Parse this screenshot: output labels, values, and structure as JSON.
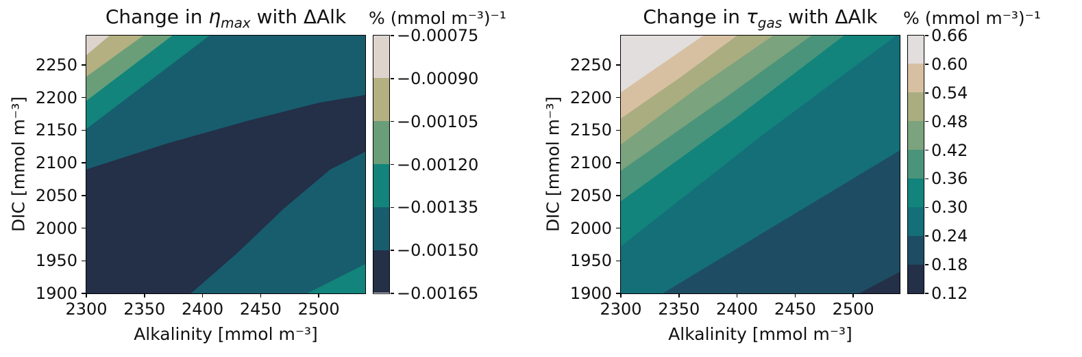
{
  "chart_data": [
    {
      "type": "contourf",
      "title": {
        "prefix": "Change in ",
        "symbol": "η",
        "subscript": "max",
        "suffix": " with ΔAlk"
      },
      "xlabel": "Alkalinity [mmol m⁻³]",
      "ylabel": "DIC [mmol m⁻³]",
      "xlim": [
        2300,
        2540
      ],
      "ylim": [
        1900,
        2295
      ],
      "xticks": [
        2300,
        2350,
        2400,
        2450,
        2500
      ],
      "yticks": [
        1900,
        1950,
        2000,
        2050,
        2100,
        2150,
        2200,
        2250
      ],
      "grid": false,
      "levels": [
        -0.00165,
        -0.0015,
        -0.00135,
        -0.0012,
        -0.00105,
        -0.0009,
        -0.00075
      ],
      "colorbar": {
        "title": "% (mmol m⁻³)⁻¹",
        "position": "right",
        "tick_labels": [
          "−0.00075",
          "−0.00090",
          "−0.00105",
          "−0.00120",
          "−0.00135",
          "−0.00150",
          "−0.00165"
        ],
        "colors": [
          "#ded4ce",
          "#b4b081",
          "#699e78",
          "#12847b",
          "#175d6e",
          "#242f48"
        ]
      },
      "base_color": "#175d6e",
      "base_band_range": [
        -0.0015,
        -0.00135
      ],
      "bands": [
        {
          "range": [
            -0.00135,
            -0.0012
          ],
          "color": "#12847b",
          "points": [
            [
              2300,
              2152
            ],
            [
              2406,
              2295
            ],
            [
              2300,
              2295
            ]
          ]
        },
        {
          "range": [
            -0.0012,
            -0.00105
          ],
          "color": "#699e78",
          "points": [
            [
              2300,
              2195
            ],
            [
              2374,
              2295
            ],
            [
              2300,
              2295
            ]
          ]
        },
        {
          "range": [
            -0.00105,
            -0.0009
          ],
          "color": "#b4b081",
          "points": [
            [
              2300,
              2232
            ],
            [
              2349,
              2295
            ],
            [
              2300,
              2295
            ]
          ]
        },
        {
          "range": [
            -0.0009,
            -0.00075
          ],
          "color": "#ded4ce",
          "points": [
            [
              2300,
              2265
            ],
            [
              2320,
              2295
            ],
            [
              2300,
              2295
            ]
          ]
        },
        {
          "range": [
            -0.00165,
            -0.0015
          ],
          "color": "#242f48",
          "points": [
            [
              2300,
              1900
            ],
            [
              2300,
              2090
            ],
            [
              2370,
              2130
            ],
            [
              2440,
              2165
            ],
            [
              2500,
              2192
            ],
            [
              2540,
              2204
            ],
            [
              2540,
              2117
            ],
            [
              2510,
              2090
            ],
            [
              2470,
              2030
            ],
            [
              2430,
              1962
            ],
            [
              2390,
              1900
            ]
          ]
        },
        {
          "range": [
            -0.00135,
            -0.0012
          ],
          "color": "#12847b",
          "points": [
            [
              2490,
              1900
            ],
            [
              2540,
              1945
            ],
            [
              2540,
              1900
            ]
          ]
        }
      ]
    },
    {
      "type": "contourf",
      "title": {
        "prefix": "Change in ",
        "symbol": "τ",
        "subscript": "gas",
        "suffix": " with ΔAlk"
      },
      "xlabel": "Alkalinity [mmol m⁻³]",
      "ylabel": "DIC [mmol m⁻³]",
      "xlim": [
        2300,
        2540
      ],
      "ylim": [
        1900,
        2295
      ],
      "xticks": [
        2300,
        2350,
        2400,
        2450,
        2500
      ],
      "yticks": [
        1900,
        1950,
        2000,
        2050,
        2100,
        2150,
        2200,
        2250
      ],
      "grid": false,
      "levels": [
        0.12,
        0.18,
        0.24,
        0.3,
        0.36,
        0.42,
        0.48,
        0.54,
        0.6,
        0.66
      ],
      "colorbar": {
        "title": "% (mmol m⁻³)⁻¹",
        "position": "right",
        "tick_labels": [
          "0.66",
          "0.60",
          "0.54",
          "0.48",
          "0.42",
          "0.36",
          "0.30",
          "0.24",
          "0.18",
          "0.12"
        ],
        "colors": [
          "#e2dedd",
          "#d7c0a1",
          "#aaad80",
          "#7ba37d",
          "#4a947b",
          "#12847b",
          "#146f79",
          "#1e4d63",
          "#242f48"
        ]
      },
      "base_color": "#242f48",
      "base_band_range": [
        0.12,
        0.18
      ],
      "bands": [
        {
          "range": [
            0.18,
            0.24
          ],
          "color": "#1e4d63",
          "points": [
            [
              2300,
              1900
            ],
            [
              2505,
              1900
            ],
            [
              2540,
              1933
            ],
            [
              2540,
              2295
            ],
            [
              2300,
              2295
            ]
          ]
        },
        {
          "range": [
            0.24,
            0.3
          ],
          "color": "#146f79",
          "points": [
            [
              2300,
              1900
            ],
            [
              2336,
              1900
            ],
            [
              2443,
              2015
            ],
            [
              2540,
              2119
            ],
            [
              2540,
              2295
            ],
            [
              2300,
              2295
            ]
          ]
        },
        {
          "range": [
            0.3,
            0.36
          ],
          "color": "#12847b",
          "points": [
            [
              2300,
              1972
            ],
            [
              2420,
              2140
            ],
            [
              2537,
              2295
            ],
            [
              2300,
              2295
            ]
          ]
        },
        {
          "range": [
            0.36,
            0.42
          ],
          "color": "#4a947b",
          "points": [
            [
              2300,
              2041
            ],
            [
              2400,
              2170
            ],
            [
              2492,
              2295
            ],
            [
              2300,
              2295
            ]
          ]
        },
        {
          "range": [
            0.42,
            0.48
          ],
          "color": "#7ba37d",
          "points": [
            [
              2300,
              2088
            ],
            [
              2390,
              2200
            ],
            [
              2464,
              2295
            ],
            [
              2300,
              2295
            ]
          ]
        },
        {
          "range": [
            0.48,
            0.54
          ],
          "color": "#aaad80",
          "points": [
            [
              2300,
              2128
            ],
            [
              2370,
              2220
            ],
            [
              2431,
              2295
            ],
            [
              2300,
              2295
            ]
          ]
        },
        {
          "range": [
            0.54,
            0.6
          ],
          "color": "#d7c0a1",
          "points": [
            [
              2300,
              2168
            ],
            [
              2352,
              2232
            ],
            [
              2400,
              2295
            ],
            [
              2300,
              2295
            ]
          ]
        },
        {
          "range": [
            0.6,
            0.66
          ],
          "color": "#e2dedd",
          "points": [
            [
              2300,
              2208
            ],
            [
              2371,
              2295
            ],
            [
              2300,
              2295
            ]
          ]
        }
      ]
    }
  ]
}
